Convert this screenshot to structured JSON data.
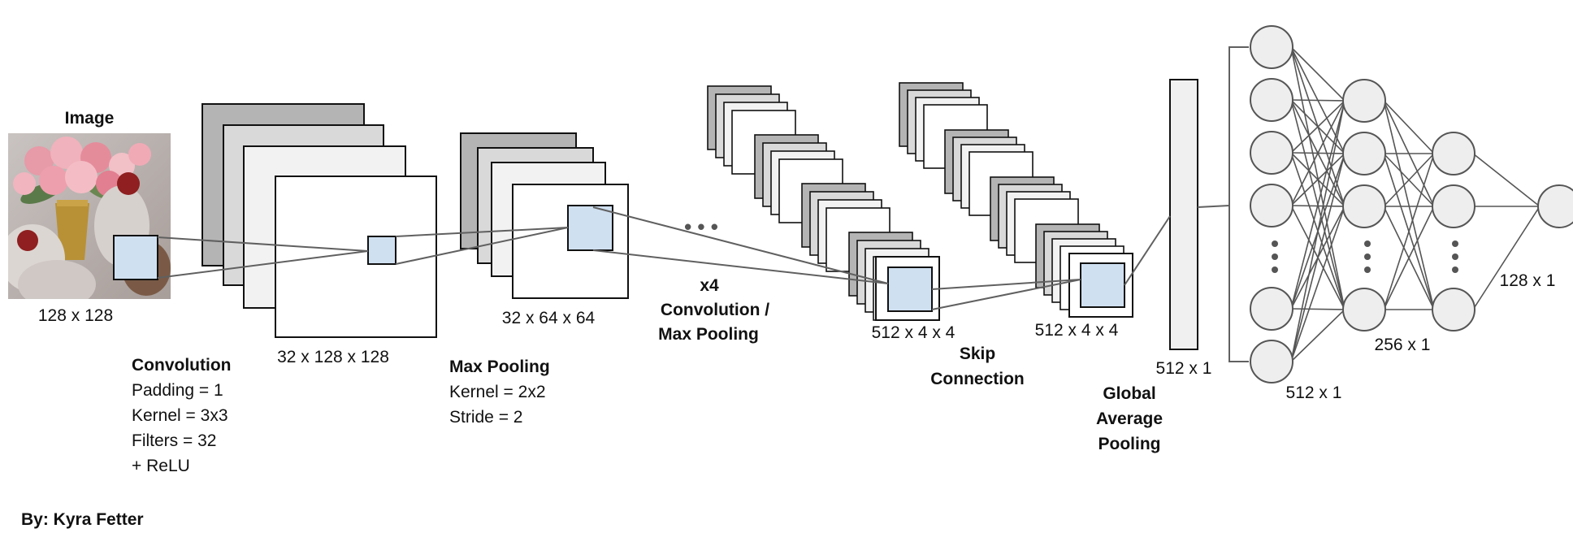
{
  "colors": {
    "map_dark": "#b4b4b4",
    "map_mid": "#d9d9d9",
    "map_light": "#f2f2f2",
    "map_white": "#ffffff",
    "kernel": "#cfe0f1",
    "node_fill": "#eeeeee",
    "stroke": "#111111",
    "line": "#606060"
  },
  "image": {
    "title": "Image",
    "size_label": "128 x 128",
    "photo_subject": "pink roses in a vase with knitted mittens"
  },
  "conv": {
    "output_label": "32 x 128 x 128",
    "title": "Convolution",
    "params": [
      "Padding = 1",
      "Kernel = 3x3",
      "Filters = 32",
      "+ ReLU"
    ]
  },
  "maxpool": {
    "output_label": "32 x 64 x 64",
    "title": "Max Pooling",
    "params": [
      "Kernel = 2x2",
      "Stride = 2"
    ]
  },
  "repeat": {
    "ellipsis": "• • •",
    "times": "x4",
    "line1": "Convolution /",
    "line2": "Max Pooling"
  },
  "block1": {
    "output_label": "512 x 4 x 4"
  },
  "block2": {
    "output_label": "512 x 4 x 4"
  },
  "skip": {
    "line1": "Skip",
    "line2": "Connection"
  },
  "gap": {
    "vector_label": "512 x 1",
    "line1": "Global",
    "line2": "Average",
    "line3": "Pooling"
  },
  "fc": {
    "layer1_label": "512 x 1",
    "layer2_label": "256 x 1",
    "layer3_label": "128 x 1"
  },
  "credit": "By: Kyra Fetter"
}
